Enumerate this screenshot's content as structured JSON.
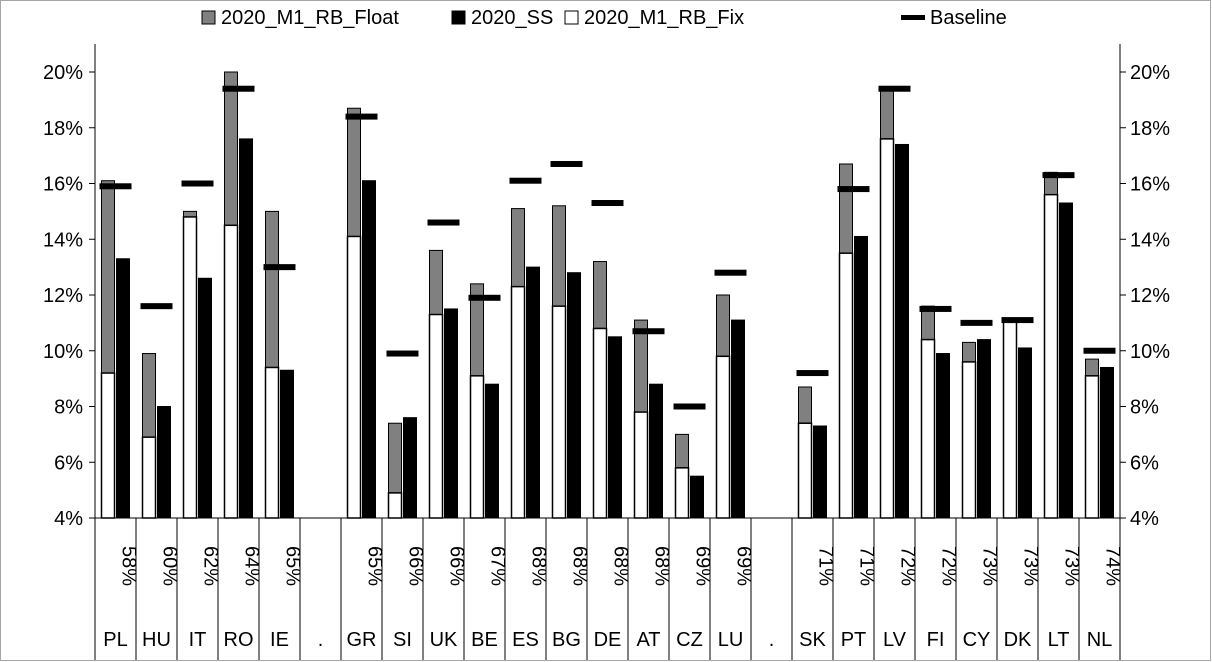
{
  "chart_data": {
    "type": "bar",
    "subtype": "stacked-grouped-with-baseline-markers",
    "legend": {
      "position": "top",
      "entries": [
        {
          "label": "2020_M1_RB_Float",
          "color": "#808080",
          "shape": "square"
        },
        {
          "label": "2020_SS",
          "color": "#000000",
          "shape": "square"
        },
        {
          "label": "2020_M1_RB_Fix",
          "color": "#ffffff",
          "shape": "square"
        },
        {
          "label": "Baseline",
          "color": "#000000",
          "shape": "dash"
        }
      ]
    },
    "y_axis": {
      "min": 0.04,
      "max": 0.2,
      "step": 0.02,
      "ticks": [
        "4%",
        "6%",
        "8%",
        "10%",
        "12%",
        "14%",
        "16%",
        "18%",
        "20%"
      ],
      "left_and_right": true,
      "grid": false
    },
    "x_axis": {
      "two_row_labels": true,
      "categories": [
        {
          "code": "PL",
          "share": "58%",
          "fix": 0.092,
          "float": 0.161,
          "ss": 0.133,
          "baseline": 0.159
        },
        {
          "code": "HU",
          "share": "60%",
          "fix": 0.069,
          "float": 0.099,
          "ss": 0.08,
          "baseline": 0.116
        },
        {
          "code": "IT",
          "share": "62%",
          "fix": 0.148,
          "float": 0.15,
          "ss": 0.126,
          "baseline": 0.16
        },
        {
          "code": "RO",
          "share": "64%",
          "fix": 0.145,
          "float": 0.2,
          "ss": 0.176,
          "baseline": 0.194
        },
        {
          "code": "IE",
          "share": "65%",
          "fix": 0.094,
          "float": 0.15,
          "ss": 0.093,
          "baseline": 0.13
        },
        {
          "code": ".",
          "share": "",
          "gap": true
        },
        {
          "code": "GR",
          "share": "65%",
          "fix": 0.141,
          "float": 0.187,
          "ss": 0.161,
          "baseline": 0.184
        },
        {
          "code": "SI",
          "share": "66%",
          "fix": 0.049,
          "float": 0.074,
          "ss": 0.076,
          "baseline": 0.099
        },
        {
          "code": "UK",
          "share": "66%",
          "fix": 0.113,
          "float": 0.136,
          "ss": 0.115,
          "baseline": 0.146
        },
        {
          "code": "BE",
          "share": "67%",
          "fix": 0.091,
          "float": 0.124,
          "ss": 0.088,
          "baseline": 0.119
        },
        {
          "code": "ES",
          "share": "68%",
          "fix": 0.123,
          "float": 0.151,
          "ss": 0.13,
          "baseline": 0.161
        },
        {
          "code": "BG",
          "share": "68%",
          "fix": 0.116,
          "float": 0.152,
          "ss": 0.128,
          "baseline": 0.167
        },
        {
          "code": "DE",
          "share": "68%",
          "fix": 0.108,
          "float": 0.132,
          "ss": 0.105,
          "baseline": 0.153
        },
        {
          "code": "AT",
          "share": "68%",
          "fix": 0.078,
          "float": 0.111,
          "ss": 0.088,
          "baseline": 0.107
        },
        {
          "code": "CZ",
          "share": "69%",
          "fix": 0.058,
          "float": 0.07,
          "ss": 0.055,
          "baseline": 0.08
        },
        {
          "code": "LU",
          "share": "69%",
          "fix": 0.098,
          "float": 0.12,
          "ss": 0.111,
          "baseline": 0.128
        },
        {
          "code": ".",
          "share": "",
          "gap": true
        },
        {
          "code": "SK",
          "share": "71%",
          "fix": 0.074,
          "float": 0.087,
          "ss": 0.073,
          "baseline": 0.092
        },
        {
          "code": "PT",
          "share": "71%",
          "fix": 0.135,
          "float": 0.167,
          "ss": 0.141,
          "baseline": 0.158
        },
        {
          "code": "LV",
          "share": "72%",
          "fix": 0.176,
          "float": 0.194,
          "ss": 0.174,
          "baseline": 0.194
        },
        {
          "code": "FI",
          "share": "72%",
          "fix": 0.104,
          "float": 0.116,
          "ss": 0.099,
          "baseline": 0.115
        },
        {
          "code": "CY",
          "share": "73%",
          "fix": 0.096,
          "float": 0.103,
          "ss": 0.104,
          "baseline": 0.11
        },
        {
          "code": "DK",
          "share": "73%",
          "fix": 0.111,
          "float": 0.111,
          "ss": 0.101,
          "baseline": 0.111
        },
        {
          "code": "LT",
          "share": "73%",
          "fix": 0.156,
          "float": 0.164,
          "ss": 0.153,
          "baseline": 0.163
        },
        {
          "code": "NL",
          "share": "74%",
          "fix": 0.091,
          "float": 0.097,
          "ss": 0.094,
          "baseline": 0.1
        }
      ]
    },
    "colors": {
      "float": "#808080",
      "ss": "#000000",
      "fix": "#ffffff",
      "outline": "#000000",
      "baseline": "#000000"
    }
  }
}
